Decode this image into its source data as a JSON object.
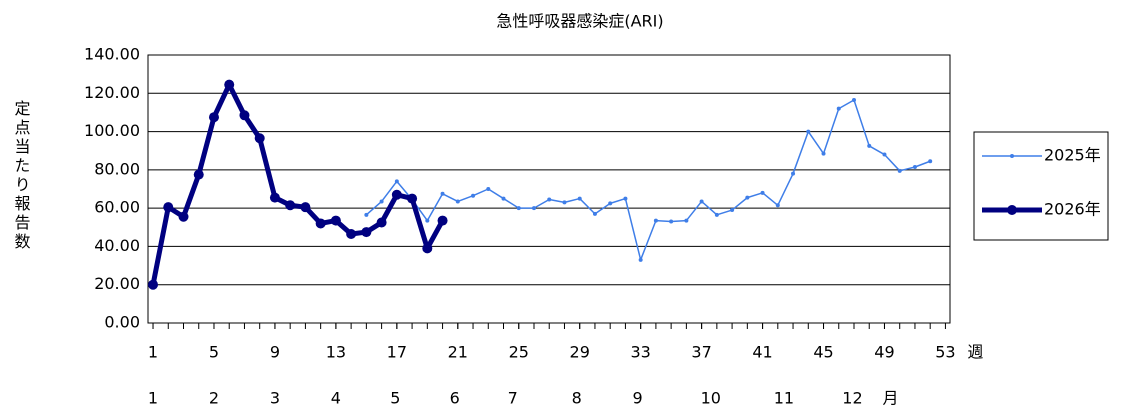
{
  "chart_data": {
    "type": "line",
    "title": "急性呼吸器感染症(ARI)",
    "y_label": "定点当たり報告数",
    "x_label": "週",
    "month_label": "月",
    "x": [
      1,
      2,
      3,
      4,
      5,
      6,
      7,
      8,
      9,
      10,
      11,
      12,
      13,
      14,
      15,
      16,
      17,
      18,
      19,
      20,
      21,
      22,
      23,
      24,
      25,
      26,
      27,
      28,
      29,
      30,
      31,
      32,
      33,
      34,
      35,
      36,
      37,
      38,
      39,
      40,
      41,
      42,
      43,
      44,
      45,
      46,
      47,
      48,
      49,
      50,
      51,
      52
    ],
    "xlim": [
      0.67,
      53.3
    ],
    "xticks": [
      1,
      5,
      9,
      13,
      17,
      21,
      25,
      29,
      33,
      37,
      41,
      45,
      49,
      53
    ],
    "months": [
      {
        "x": 1,
        "label": "1"
      },
      {
        "x": 5,
        "label": "2"
      },
      {
        "x": 9,
        "label": "3"
      },
      {
        "x": 13,
        "label": "4"
      },
      {
        "x": 16.9,
        "label": "5"
      },
      {
        "x": 20.8,
        "label": "6"
      },
      {
        "x": 24.6,
        "label": "7"
      },
      {
        "x": 28.8,
        "label": "8"
      },
      {
        "x": 32.8,
        "label": "9"
      },
      {
        "x": 37.6,
        "label": "10"
      },
      {
        "x": 42.4,
        "label": "11"
      },
      {
        "x": 46.9,
        "label": "12"
      }
    ],
    "ylim": [
      0,
      140
    ],
    "yticks": [
      {
        "value": 0,
        "label": "0.00"
      },
      {
        "value": 20,
        "label": "20.00"
      },
      {
        "value": 40,
        "label": "40.00"
      },
      {
        "value": 60,
        "label": "60.00"
      },
      {
        "value": 80,
        "label": "80.00"
      },
      {
        "value": 100,
        "label": "100.00"
      },
      {
        "value": 120,
        "label": "120.00"
      },
      {
        "value": 140,
        "label": "140.00"
      }
    ],
    "grid": true,
    "legend": "right",
    "series": [
      {
        "name": "2025年",
        "color": "#3f7ee8",
        "width": 1.5,
        "marker": 2,
        "values": [
          null,
          null,
          null,
          null,
          null,
          null,
          null,
          null,
          null,
          null,
          null,
          null,
          null,
          null,
          56.5,
          63.5,
          74,
          64.5,
          53.5,
          67.5,
          63.5,
          66.5,
          70,
          65,
          60,
          60,
          64.5,
          63,
          65,
          57,
          62.5,
          65,
          33,
          53.5,
          53,
          53.5,
          63.5,
          56.5,
          59,
          65.5,
          68,
          61.5,
          78,
          100,
          88.5,
          112,
          116.5,
          92.5,
          88,
          79.5,
          81.5,
          84.5
        ]
      },
      {
        "name": "2026年",
        "color": "#000080",
        "width": 5,
        "marker": 5,
        "values": [
          20,
          60.5,
          55.5,
          77.5,
          107.5,
          124.5,
          108.5,
          96.5,
          65.5,
          61.5,
          60.5,
          52,
          53.5,
          46.5,
          47.5,
          52.5,
          67,
          65,
          39,
          53.5,
          null,
          null,
          null,
          null,
          null,
          null,
          null,
          null,
          null,
          null,
          null,
          null,
          null,
          null,
          null,
          null,
          null,
          null,
          null,
          null,
          null,
          null,
          null,
          null,
          null,
          null,
          null,
          null,
          null,
          null,
          null,
          null
        ]
      }
    ]
  }
}
